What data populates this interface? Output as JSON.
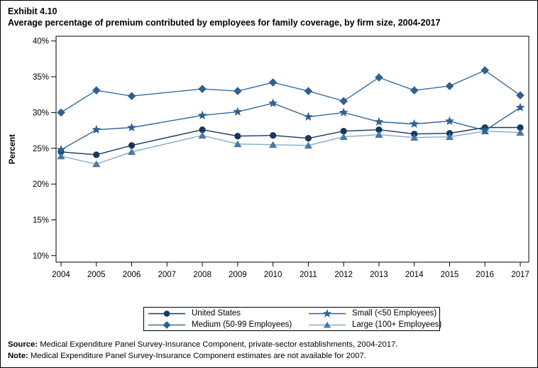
{
  "header": {
    "exhibit_number": "Exhibit 4.10",
    "title": "Average percentage of premium contributed by employees for family coverage, by firm size, 2004-2017"
  },
  "chart_data": {
    "type": "line",
    "ylabel": "Percent",
    "ylim": [
      10,
      40
    ],
    "grid": false,
    "legend_position": "bottom",
    "yticks": [
      {
        "value": 40,
        "label": "40%"
      },
      {
        "value": 35,
        "label": "35%"
      },
      {
        "value": 30,
        "label": "30%"
      },
      {
        "value": 25,
        "label": "25%"
      },
      {
        "value": 20,
        "label": "20%"
      },
      {
        "value": 15,
        "label": "15%"
      },
      {
        "value": 10,
        "label": "10%"
      }
    ],
    "categories": [
      "2004",
      "2005",
      "2006",
      "2007",
      "2008",
      "2009",
      "2010",
      "2011",
      "2012",
      "2013",
      "2014",
      "2015",
      "2016",
      "2017"
    ],
    "series": [
      {
        "name": "United States",
        "marker": "circle",
        "color": "#17375E",
        "line_color": "#17375E",
        "values": [
          24.5,
          24.1,
          25.4,
          null,
          27.6,
          26.7,
          26.8,
          26.4,
          27.4,
          27.6,
          27.0,
          27.1,
          27.9,
          27.9
        ]
      },
      {
        "name": "Small (<50 Employees)",
        "marker": "star",
        "color": "#2E6090",
        "line_color": "#336699",
        "values": [
          24.8,
          27.6,
          27.9,
          null,
          29.6,
          30.1,
          31.3,
          29.4,
          30.0,
          28.7,
          28.4,
          28.8,
          27.5,
          30.7
        ]
      },
      {
        "name": "Medium (50-99 Employees)",
        "marker": "diamond",
        "color": "#2E6090",
        "line_color": "#3A6C9C",
        "values": [
          30.0,
          33.1,
          32.3,
          null,
          33.3,
          33.0,
          34.2,
          33.0,
          31.6,
          34.9,
          33.1,
          33.7,
          35.9,
          32.4
        ]
      },
      {
        "name": "Large (100+ Employees)",
        "marker": "triangle",
        "color": "#4878A8",
        "line_color": "#85A9CB",
        "values": [
          23.9,
          22.8,
          24.5,
          null,
          26.8,
          25.6,
          25.5,
          25.4,
          26.6,
          26.9,
          26.5,
          26.6,
          27.4,
          27.2
        ]
      }
    ],
    "legend_order": [
      "United States",
      "Small (<50 Employees)",
      "Medium (50-99 Employees)",
      "Large (100+ Employees)"
    ]
  },
  "footer": {
    "source_label": "Source:",
    "source_text": "Medical Expenditure Panel Survey-Insurance Component, private-sector establishments, 2004-2017.",
    "note_label": "Note:",
    "note_text": "Medical Expenditure Panel Survey-Insurance Component estimates are not available for 2007."
  }
}
